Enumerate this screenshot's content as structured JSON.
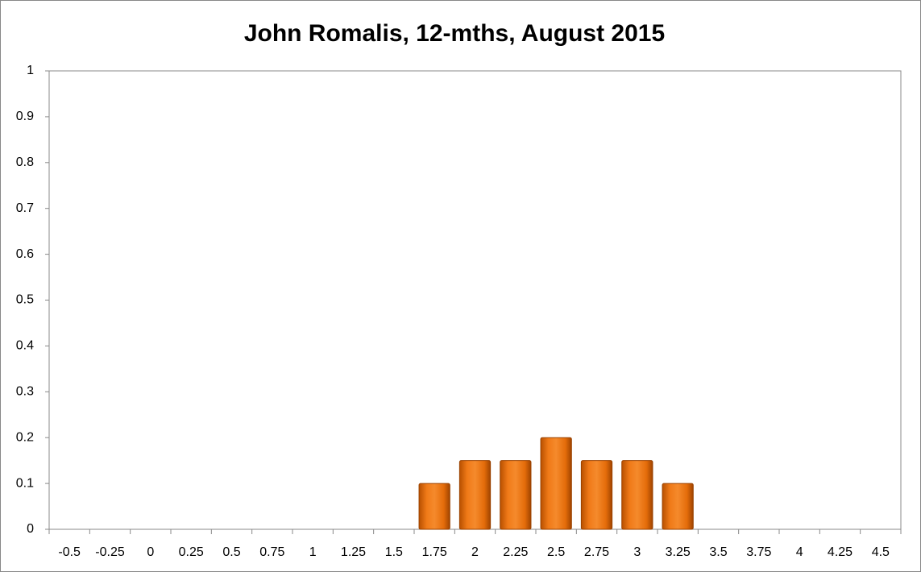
{
  "chart_data": {
    "type": "bar",
    "title": "John Romalis, 12-mths, August 2015",
    "categories": [
      "-0.5",
      "-0.25",
      "0",
      "0.25",
      "0.5",
      "0.75",
      "1",
      "1.25",
      "1.5",
      "1.75",
      "2",
      "2.25",
      "2.5",
      "2.75",
      "3",
      "3.25",
      "3.5",
      "3.75",
      "4",
      "4.25",
      "4.5"
    ],
    "values": [
      0,
      0,
      0,
      0,
      0,
      0,
      0,
      0,
      0,
      0.1,
      0.15,
      0.15,
      0.2,
      0.15,
      0.15,
      0.1,
      0,
      0,
      0,
      0,
      0
    ],
    "color": "#e46c0a",
    "ylim": [
      0,
      1
    ],
    "yticks": [
      0,
      0.1,
      0.2,
      0.3,
      0.4,
      0.5,
      0.6,
      0.7,
      0.8,
      0.9,
      1
    ],
    "grid": false
  }
}
